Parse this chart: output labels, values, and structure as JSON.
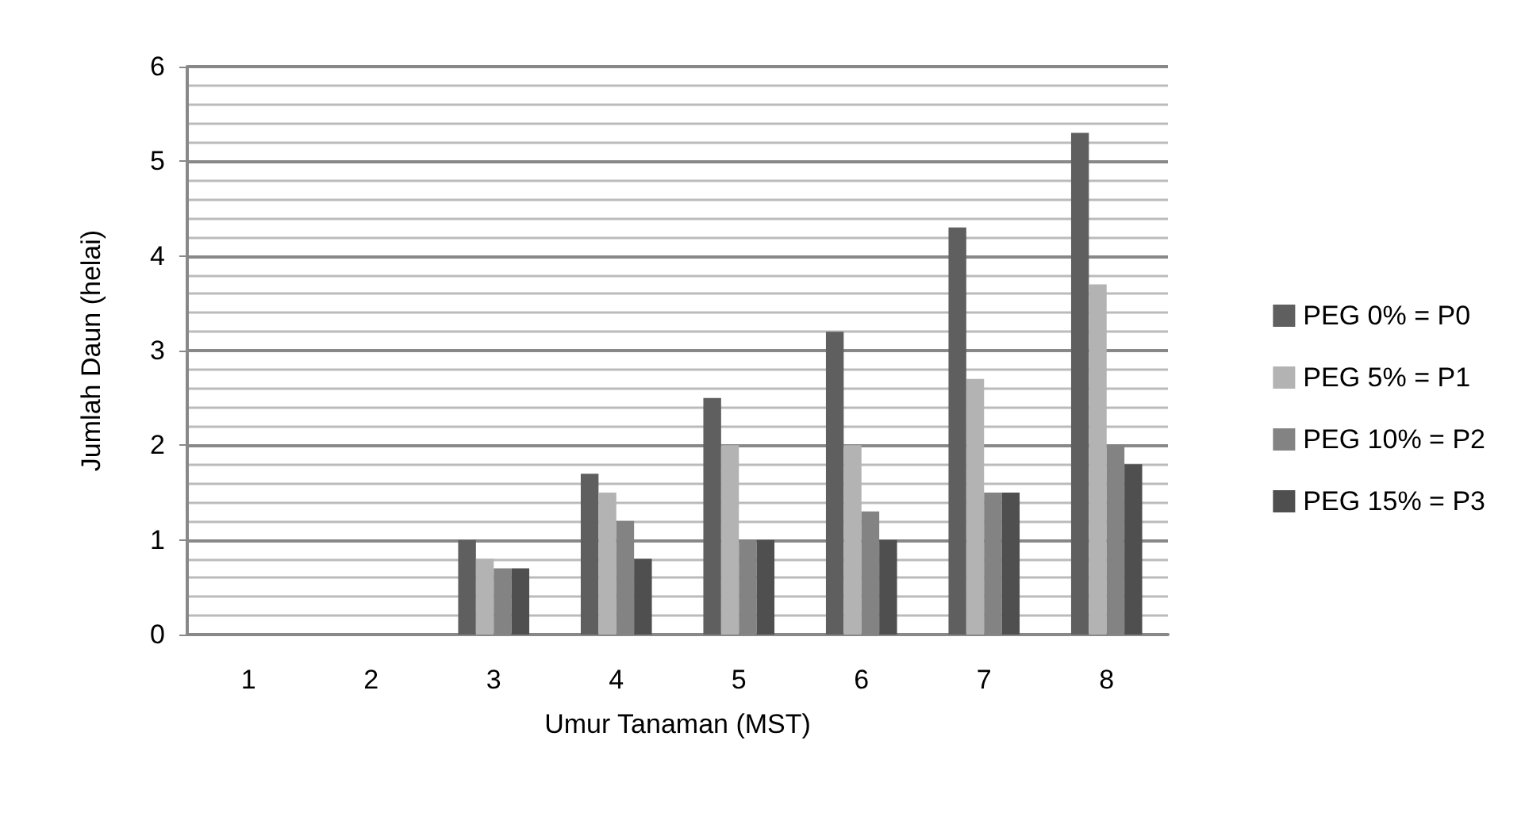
{
  "chart_data": {
    "type": "bar",
    "xlabel": "Umur Tanaman (MST)",
    "ylabel": "Jumlah Daun (helai)",
    "categories": [
      "1",
      "2",
      "3",
      "4",
      "5",
      "6",
      "7",
      "8"
    ],
    "series": [
      {
        "name": "PEG 0% = P0",
        "color": "#5f5f5f",
        "values": [
          0,
          0,
          1.0,
          1.7,
          2.5,
          3.2,
          4.3,
          5.3
        ]
      },
      {
        "name": "PEG 5% = P1",
        "color": "#b3b3b3",
        "values": [
          0,
          0,
          0.8,
          1.5,
          2.0,
          2.0,
          2.7,
          3.7
        ]
      },
      {
        "name": "PEG 10% = P2",
        "color": "#838383",
        "values": [
          0,
          0,
          0.7,
          1.2,
          1.0,
          1.3,
          1.5,
          2.0
        ]
      },
      {
        "name": "PEG 15% = P3",
        "color": "#4f4f4f",
        "values": [
          0,
          0,
          0.7,
          0.8,
          1.0,
          1.0,
          1.5,
          1.8
        ]
      }
    ],
    "ylim": [
      0,
      6
    ],
    "yticks": [
      0,
      1,
      2,
      3,
      4,
      5,
      6
    ],
    "grid": "y",
    "legend": "right"
  }
}
